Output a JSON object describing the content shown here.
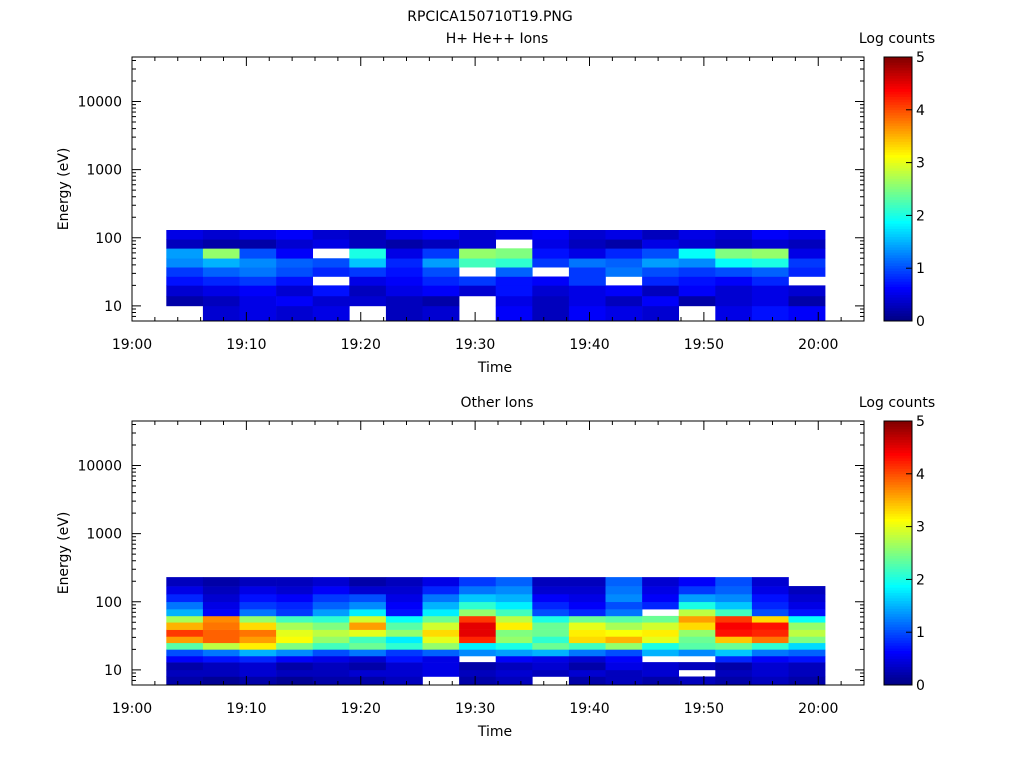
{
  "figure_title": "RPCICA150710T19.PNG",
  "chart_data": [
    {
      "type": "heatmap",
      "title": "H+ He++ Ions",
      "xlabel": "Time",
      "ylabel": "Energy (eV)",
      "x_ticks": [
        "19:00",
        "19:10",
        "19:20",
        "19:30",
        "19:40",
        "19:50",
        "20:00"
      ],
      "x_range": [
        "19:00",
        "20:04"
      ],
      "y_scale": "log",
      "y_ticks": [
        "10",
        "100",
        "1000",
        "10000"
      ],
      "y_range": [
        6,
        45000
      ],
      "colorbar": {
        "label": "Log counts",
        "ticks": [
          "0",
          "1",
          "2",
          "3",
          "4",
          "5"
        ],
        "range": [
          0,
          5
        ],
        "colormap": "jet"
      },
      "time_bins": 18,
      "time_bin_start": "19:03",
      "time_bin_minutes": 3.2,
      "rows": [
        {
          "e_lo": 6,
          "e_hi": 10,
          "values": [
            null,
            0.4,
            0.5,
            0.4,
            0.5,
            null,
            0.3,
            0.4,
            null,
            0.6,
            0.3,
            0.6,
            0.5,
            0.4,
            null,
            0.5,
            0.7,
            0.6
          ]
        },
        {
          "e_lo": 10,
          "e_hi": 14,
          "values": [
            0.2,
            0.3,
            0.5,
            0.6,
            0.4,
            0.4,
            0.3,
            0.2,
            null,
            0.5,
            0.3,
            0.5,
            0.3,
            0.6,
            0.2,
            0.4,
            0.5,
            0.2
          ]
        },
        {
          "e_lo": 14,
          "e_hi": 20,
          "values": [
            0.4,
            0.5,
            0.6,
            0.4,
            0.7,
            0.3,
            0.5,
            0.6,
            0.4,
            0.7,
            0.4,
            0.5,
            0.6,
            0.3,
            0.6,
            0.4,
            0.5,
            0.4
          ]
        },
        {
          "e_lo": 20,
          "e_hi": 27,
          "values": [
            0.7,
            0.8,
            0.9,
            0.7,
            null,
            0.5,
            0.6,
            0.8,
            0.9,
            0.7,
            0.6,
            0.9,
            null,
            0.8,
            0.7,
            0.6,
            0.8,
            null
          ]
        },
        {
          "e_lo": 27,
          "e_hi": 37,
          "values": [
            0.9,
            1.1,
            1.2,
            1.0,
            0.8,
            0.9,
            0.7,
            1.0,
            null,
            1.1,
            null,
            0.9,
            1.2,
            1.0,
            0.9,
            1.0,
            1.1,
            0.8
          ]
        },
        {
          "e_lo": 37,
          "e_hi": 50,
          "values": [
            1.3,
            1.5,
            1.3,
            1.1,
            1.0,
            1.6,
            0.8,
            1.4,
            2.2,
            2.1,
            0.9,
            1.2,
            1.1,
            1.4,
            1.3,
            1.9,
            2.0,
            0.9
          ]
        },
        {
          "e_lo": 50,
          "e_hi": 70,
          "values": [
            1.4,
            2.6,
            1.0,
            0.6,
            null,
            2.0,
            0.5,
            0.9,
            2.6,
            2.5,
            0.7,
            0.5,
            0.8,
            1.0,
            1.9,
            2.5,
            2.6,
            0.5
          ]
        },
        {
          "e_lo": 70,
          "e_hi": 95,
          "values": [
            0.3,
            0.2,
            0.2,
            0.4,
            0.5,
            0.3,
            0.2,
            0.3,
            0.4,
            null,
            0.5,
            0.3,
            0.2,
            0.5,
            0.4,
            0.3,
            0.4,
            0.3
          ]
        },
        {
          "e_lo": 95,
          "e_hi": 130,
          "values": [
            0.5,
            0.4,
            0.5,
            0.6,
            0.4,
            0.3,
            0.5,
            0.6,
            0.4,
            0.5,
            0.6,
            0.4,
            0.5,
            0.3,
            0.5,
            0.4,
            0.6,
            0.5
          ]
        }
      ]
    },
    {
      "type": "heatmap",
      "title": "Other Ions",
      "xlabel": "Time",
      "ylabel": "Energy (eV)",
      "x_ticks": [
        "19:00",
        "19:10",
        "19:20",
        "19:30",
        "19:40",
        "19:50",
        "20:00"
      ],
      "x_range": [
        "19:00",
        "20:04"
      ],
      "y_scale": "log",
      "y_ticks": [
        "10",
        "100",
        "1000",
        "10000"
      ],
      "y_range": [
        6,
        45000
      ],
      "colorbar": {
        "label": "Log counts",
        "ticks": [
          "0",
          "1",
          "2",
          "3",
          "4",
          "5"
        ],
        "range": [
          0,
          5
        ],
        "colormap": "jet"
      },
      "time_bins": 18,
      "time_bin_start": "19:03",
      "time_bin_minutes": 3.2,
      "rows": [
        {
          "e_lo": 6,
          "e_hi": 8,
          "values": [
            0.2,
            0.1,
            0.2,
            0.1,
            0.2,
            0.2,
            0.3,
            null,
            0.2,
            0.3,
            null,
            0.2,
            0.3,
            0.2,
            0.3,
            0.2,
            0.3,
            0.2
          ]
        },
        {
          "e_lo": 8,
          "e_hi": 10,
          "values": [
            0.3,
            0.3,
            0.4,
            0.3,
            0.3,
            0.4,
            0.4,
            0.5,
            0.3,
            0.4,
            0.3,
            0.4,
            0.3,
            0.4,
            null,
            0.3,
            0.4,
            0.3
          ]
        },
        {
          "e_lo": 10,
          "e_hi": 13,
          "values": [
            0.2,
            0.3,
            0.4,
            0.2,
            0.3,
            0.2,
            0.4,
            0.5,
            0.2,
            0.3,
            0.4,
            0.2,
            0.5,
            0.4,
            0.3,
            0.2,
            0.4,
            0.3
          ]
        },
        {
          "e_lo": 13,
          "e_hi": 16,
          "values": [
            0.6,
            0.7,
            0.8,
            0.6,
            0.5,
            0.4,
            0.7,
            0.5,
            null,
            0.6,
            0.5,
            0.4,
            0.6,
            null,
            null,
            0.8,
            0.6,
            0.7
          ]
        },
        {
          "e_lo": 16,
          "e_hi": 20,
          "values": [
            1.0,
            1.2,
            1.5,
            1.3,
            1.0,
            1.2,
            0.9,
            1.1,
            1.3,
            1.4,
            1.5,
            1.2,
            1.0,
            1.5,
            1.3,
            1.6,
            1.2,
            1.1
          ]
        },
        {
          "e_lo": 20,
          "e_hi": 25,
          "values": [
            2.3,
            2.8,
            3.2,
            2.5,
            2.2,
            2.4,
            2.1,
            2.6,
            1.8,
            2.0,
            2.4,
            2.2,
            2.6,
            2.0,
            2.3,
            2.4,
            2.1,
            1.7
          ]
        },
        {
          "e_lo": 25,
          "e_hi": 31,
          "values": [
            3.6,
            3.9,
            3.6,
            3.1,
            2.6,
            2.2,
            1.8,
            3.0,
            4.2,
            2.6,
            2.1,
            3.3,
            3.5,
            3.0,
            2.4,
            3.4,
            3.8,
            2.5
          ]
        },
        {
          "e_lo": 31,
          "e_hi": 39,
          "values": [
            4.1,
            3.9,
            3.8,
            3.0,
            2.8,
            3.0,
            2.6,
            3.3,
            4.5,
            2.5,
            2.4,
            3.2,
            3.1,
            3.2,
            2.6,
            4.3,
            4.2,
            2.8
          ]
        },
        {
          "e_lo": 39,
          "e_hi": 50,
          "values": [
            3.5,
            3.8,
            3.3,
            2.7,
            2.5,
            3.6,
            2.3,
            2.9,
            4.5,
            3.2,
            2.4,
            3.0,
            2.7,
            2.9,
            3.3,
            4.4,
            4.3,
            2.6
          ]
        },
        {
          "e_lo": 50,
          "e_hi": 62,
          "values": [
            2.7,
            3.7,
            2.6,
            2.2,
            2.1,
            2.9,
            1.9,
            2.4,
            4.1,
            2.8,
            2.0,
            2.4,
            2.3,
            2.4,
            3.6,
            4.1,
            3.3,
            1.9
          ]
        },
        {
          "e_lo": 62,
          "e_hi": 78,
          "values": [
            1.5,
            0.6,
            1.2,
            0.9,
            1.4,
            1.8,
            0.7,
            1.8,
            2.6,
            2.2,
            1.0,
            0.8,
            1.2,
            null,
            2.8,
            2.2,
            1.0,
            0.7
          ]
        },
        {
          "e_lo": 78,
          "e_hi": 100,
          "values": [
            1.2,
            0.5,
            0.9,
            0.8,
            1.1,
            1.3,
            0.6,
            1.5,
            2.1,
            1.8,
            0.8,
            0.6,
            1.0,
            0.8,
            2.0,
            1.6,
            0.8,
            0.5
          ]
        },
        {
          "e_lo": 100,
          "e_hi": 130,
          "values": [
            0.8,
            0.4,
            0.7,
            0.6,
            0.9,
            1.0,
            0.5,
            1.2,
            1.6,
            1.5,
            0.6,
            0.5,
            1.3,
            0.6,
            1.4,
            1.3,
            0.7,
            0.4
          ]
        },
        {
          "e_lo": 130,
          "e_hi": 170,
          "values": [
            0.5,
            0.3,
            0.5,
            0.4,
            0.6,
            0.4,
            0.4,
            0.8,
            1.2,
            1.3,
            0.4,
            0.4,
            1.2,
            0.5,
            0.9,
            1.1,
            0.5,
            0.3
          ]
        },
        {
          "e_lo": 170,
          "e_hi": 230,
          "values": [
            0.3,
            0.2,
            0.3,
            0.3,
            0.4,
            0.2,
            0.3,
            0.5,
            0.9,
            1.1,
            0.3,
            0.3,
            1.1,
            0.4,
            0.6,
            1.0,
            0.4,
            null
          ]
        }
      ]
    }
  ]
}
